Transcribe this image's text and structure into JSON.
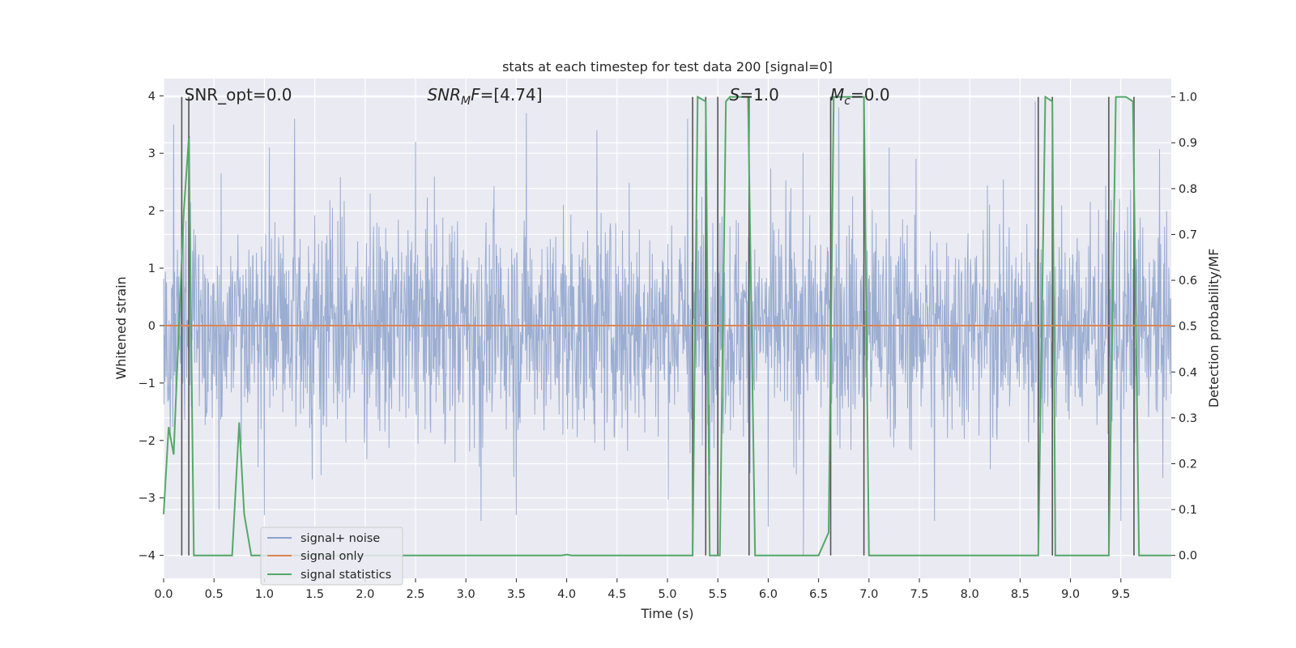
{
  "chart_data": {
    "type": "line",
    "title": "stats at each timestep for test data 200 [signal=0]",
    "xlabel": "Time (s)",
    "ylabel": "Whitened strain",
    "ylabel_right": "Detection probability/MF",
    "xlim": [
      0,
      10
    ],
    "ylim": [
      -4.4,
      4.3
    ],
    "ylim_right": [
      -0.05,
      1.04
    ],
    "x_ticks": [
      0.0,
      0.5,
      1.0,
      1.5,
      2.0,
      2.5,
      3.0,
      3.5,
      4.0,
      4.5,
      5.0,
      5.5,
      6.0,
      6.5,
      7.0,
      7.5,
      8.0,
      8.5,
      9.0,
      9.5
    ],
    "x_tick_labels": [
      "0.0",
      "0.5",
      "1.0",
      "1.5",
      "2.0",
      "2.5",
      "3.0",
      "3.5",
      "4.0",
      "4.5",
      "5.0",
      "5.5",
      "6.0",
      "6.5",
      "7.0",
      "7.5",
      "8.0",
      "8.5",
      "9.0",
      "9.5"
    ],
    "y_ticks": [
      -4,
      -3,
      -2,
      -1,
      0,
      1,
      2,
      3,
      4
    ],
    "y_tick_labels": [
      "−4",
      "−3",
      "−2",
      "−1",
      "0",
      "1",
      "2",
      "3",
      "4"
    ],
    "y_right_ticks": [
      0.0,
      0.1,
      0.2,
      0.3,
      0.4,
      0.5,
      0.6,
      0.7,
      0.8,
      0.9,
      1.0
    ],
    "y_right_tick_labels": [
      "0.0",
      "0.1",
      "0.2",
      "0.3",
      "0.4",
      "0.5",
      "0.6",
      "0.7",
      "0.8",
      "0.9",
      "1.0"
    ],
    "grid": true,
    "legend_position": "lower-left",
    "annotations": [
      {
        "prefix": "SNR_opt=0.0",
        "italic": "",
        "sub": "",
        "suffix": "",
        "x": 0.19
      },
      {
        "prefix": "",
        "italic": "SNR",
        "sub": "M",
        "italic2": "F",
        "suffix": "=[4.74]",
        "x": 2.6
      },
      {
        "prefix": "",
        "italic": "S",
        "sub": "",
        "suffix": "=1.0",
        "x": 5.6
      },
      {
        "prefix": "",
        "italic": "M",
        "sub": "c",
        "suffix": "=0.0",
        "x": 6.6
      }
    ],
    "series": [
      {
        "name": "signal+ noise",
        "color": "#8da2cb",
        "axis": "left",
        "representation": "whitened noise, x from 0 to 10 s; envelope mostly within about ±2.8 with peaks to ≈3.9 and troughs to ≈−4.0",
        "x": [
          0.0,
          10.0
        ],
        "y_envelope": [
          -4.0,
          3.9
        ],
        "peaks": [
          {
            "x": 0.1,
            "y": 3.5
          },
          {
            "x": 0.26,
            "y": 3.3
          },
          {
            "x": 1.05,
            "y": 3.1
          },
          {
            "x": 1.3,
            "y": 3.6
          },
          {
            "x": 2.5,
            "y": 3.2
          },
          {
            "x": 3.6,
            "y": 3.7
          },
          {
            "x": 4.3,
            "y": 3.4
          },
          {
            "x": 5.2,
            "y": 3.6
          },
          {
            "x": 5.5,
            "y": 3.6
          },
          {
            "x": 6.35,
            "y": 3.6
          },
          {
            "x": 6.7,
            "y": 3.8
          },
          {
            "x": 7.2,
            "y": 3.1
          },
          {
            "x": 8.65,
            "y": 3.9
          },
          {
            "x": 9.5,
            "y": 3.7
          }
        ],
        "troughs": [
          {
            "x": 0.55,
            "y": -3.2
          },
          {
            "x": 1.0,
            "y": -3.3
          },
          {
            "x": 3.15,
            "y": -3.4
          },
          {
            "x": 3.5,
            "y": -3.3
          },
          {
            "x": 6.0,
            "y": -3.5
          },
          {
            "x": 6.35,
            "y": -4.0
          },
          {
            "x": 7.65,
            "y": -3.4
          },
          {
            "x": 9.5,
            "y": -3.4
          }
        ]
      },
      {
        "name": "signal only",
        "color": "#dd8452",
        "axis": "left",
        "x": [
          0.0,
          10.0
        ],
        "y": [
          0.0,
          0.0
        ]
      },
      {
        "name": "signal statistics",
        "color": "#55a868",
        "axis": "right",
        "x": [
          0.0,
          0.05,
          0.1,
          0.12,
          0.2,
          0.25,
          0.3,
          0.4,
          0.5,
          0.6,
          0.68,
          0.75,
          0.8,
          0.87,
          0.95,
          1.5,
          2.0,
          3.0,
          3.95,
          4.0,
          4.05,
          5.0,
          5.25,
          5.3,
          5.38,
          5.42,
          5.52,
          5.58,
          5.62,
          5.8,
          5.87,
          6.0,
          6.5,
          6.6,
          6.65,
          6.68,
          6.95,
          7.0,
          8.5,
          8.68,
          8.75,
          8.82,
          8.85,
          9.0,
          9.38,
          9.45,
          9.55,
          9.62,
          9.68,
          9.8,
          10.0
        ],
        "y": [
          0.09,
          0.28,
          0.22,
          0.33,
          0.75,
          0.91,
          0.0,
          0.0,
          0.0,
          0.0,
          0.0,
          0.29,
          0.09,
          0.0,
          0.0,
          0.0,
          0.0,
          0.0,
          0.0,
          0.002,
          0.0,
          0.0,
          0.0,
          1.0,
          0.99,
          0.0,
          0.0,
          0.99,
          1.0,
          1.0,
          0.0,
          0.0,
          0.0,
          0.05,
          1.0,
          1.0,
          1.0,
          0.0,
          0.0,
          0.0,
          1.0,
          0.99,
          0.0,
          0.0,
          0.0,
          1.0,
          1.0,
          0.99,
          0.0,
          0.0,
          0.0
        ]
      }
    ],
    "vertical_markers": {
      "color": "#555555",
      "x": [
        0.18,
        0.25,
        5.25,
        5.38,
        5.5,
        5.81,
        6.62,
        6.95,
        8.68,
        8.82,
        9.38,
        9.63
      ]
    }
  }
}
